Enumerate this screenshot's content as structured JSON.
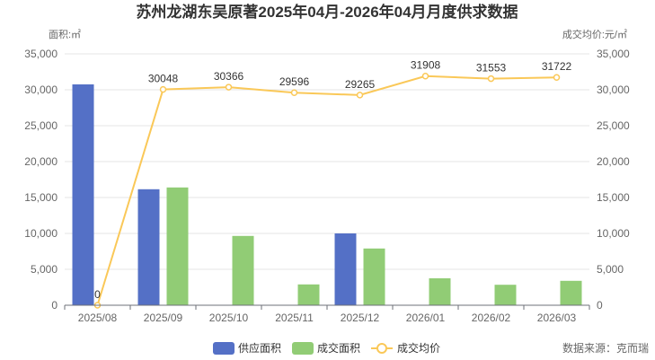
{
  "chart_data": {
    "type": "bar+line",
    "title": "苏州龙湖东吴原著2025年04月-2026年04月月度供求数据",
    "ylabel_left": "面积:㎡",
    "ylabel_right": "成交均价:元/㎡",
    "ylim_left": [
      0,
      35000
    ],
    "ylim_right": [
      0,
      35000
    ],
    "yticks": [
      "0",
      "5,000",
      "10,000",
      "15,000",
      "20,000",
      "25,000",
      "30,000",
      "35,000"
    ],
    "grid": true,
    "categories": [
      "2025/08",
      "2025/09",
      "2025/10",
      "2025/11",
      "2025/12",
      "2026/01",
      "2026/02",
      "2026/03"
    ],
    "series": [
      {
        "name": "供应面积",
        "type": "bar",
        "color": "#5470c6",
        "values": [
          30750,
          16150,
          0,
          0,
          10000,
          0,
          0,
          0
        ]
      },
      {
        "name": "成交面积",
        "type": "bar",
        "color": "#91cc75",
        "values": [
          0,
          16400,
          9650,
          2900,
          7900,
          3750,
          2850,
          3400
        ]
      },
      {
        "name": "成交均价",
        "type": "line",
        "color": "#fac858",
        "values": [
          0,
          30048,
          30366,
          29596,
          29265,
          31908,
          31553,
          31722
        ],
        "labels": [
          "0",
          "30048",
          "30366",
          "29596",
          "29265",
          "31908",
          "31553",
          "31722"
        ]
      }
    ],
    "legend_position": "bottom",
    "source": "数据来源：克而瑞"
  }
}
